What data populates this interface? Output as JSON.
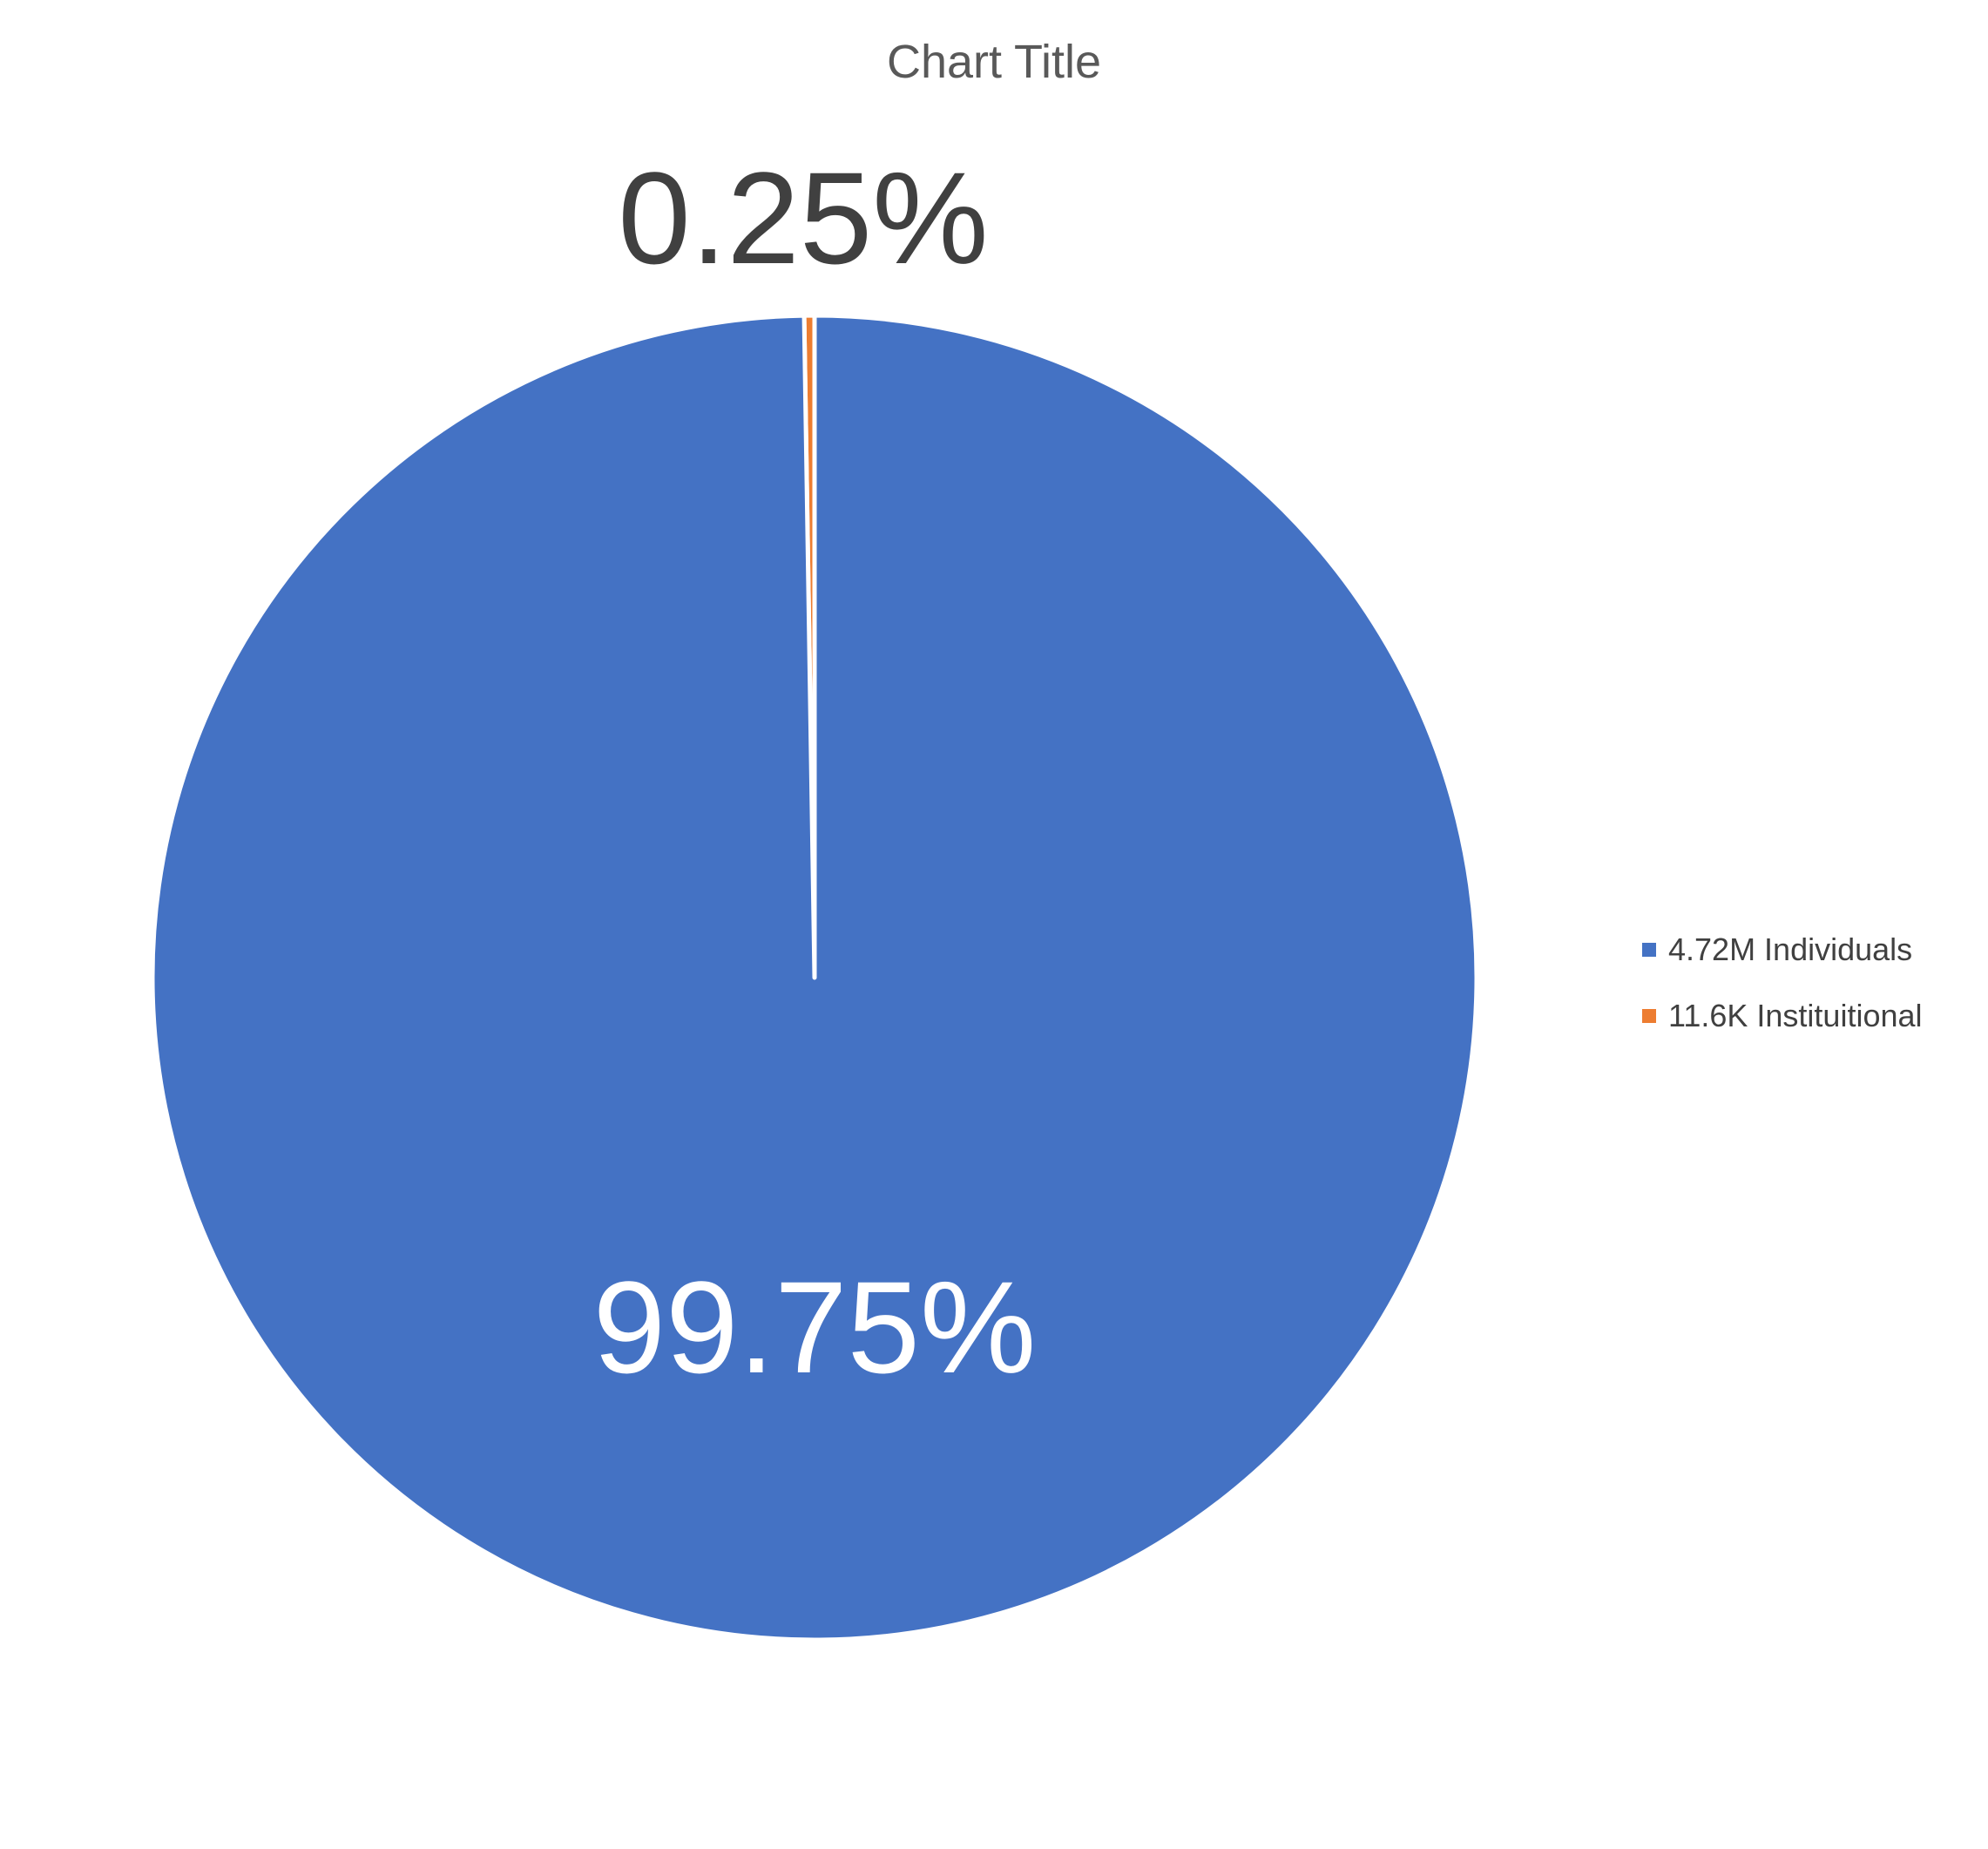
{
  "chart_data": {
    "type": "pie",
    "title": "Chart Title",
    "start_angle_deg": 0,
    "direction": "clockwise",
    "legend_position": "right",
    "slices": [
      {
        "label": "4.72M Individuals",
        "value": 99.75,
        "data_label": "99.75%",
        "color": "#4472C4",
        "label_color": "#FFFFFF"
      },
      {
        "label": "11.6K Instituitional",
        "value": 0.25,
        "data_label": "0.25%",
        "color": "#ED7D31",
        "label_color": "#404040"
      }
    ]
  }
}
